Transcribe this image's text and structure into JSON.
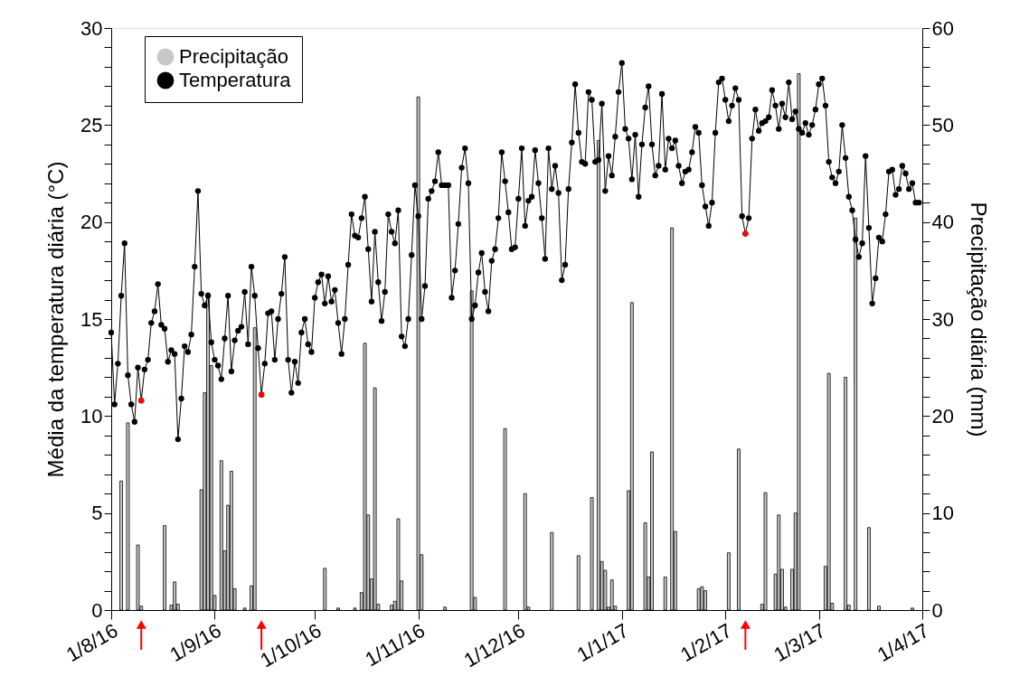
{
  "chart_data": {
    "type": "line",
    "xlabel": null,
    "ylabel": "Média da temperatura diária (°C)",
    "y2label": "Precipitação diária (mm)",
    "xlim": [
      "2016-08-01",
      "2017-04-01"
    ],
    "xticks": [
      {
        "value": "2016-08-01",
        "label": "1/8/16"
      },
      {
        "value": "2016-09-01",
        "label": "1/9/16"
      },
      {
        "value": "2016-10-01",
        "label": "1/10/16"
      },
      {
        "value": "2016-11-01",
        "label": "1/11/16"
      },
      {
        "value": "2016-12-01",
        "label": "1/12/16"
      },
      {
        "value": "2017-01-01",
        "label": "1/1/17"
      },
      {
        "value": "2017-02-01",
        "label": "1/2/17"
      },
      {
        "value": "2017-03-01",
        "label": "1/3/17"
      },
      {
        "value": "2017-04-01",
        "label": "1/4/17"
      }
    ],
    "ylim": [
      0,
      30
    ],
    "yticks": [
      0,
      {
        "value": 1,
        "label": null
      },
      {
        "value": 2,
        "label": null
      },
      {
        "value": 3,
        "label": null
      },
      {
        "value": 4,
        "label": null
      },
      5,
      {
        "value": 6,
        "label": null
      },
      {
        "value": 7,
        "label": null
      },
      {
        "value": 8,
        "label": null
      },
      {
        "value": 9,
        "label": null
      },
      10,
      {
        "value": 11,
        "label": null
      },
      {
        "value": 12,
        "label": null
      },
      {
        "value": 13,
        "label": null
      },
      {
        "value": 14,
        "label": null
      },
      15,
      {
        "value": 16,
        "label": null
      },
      {
        "value": 17,
        "label": null
      },
      {
        "value": 18,
        "label": null
      },
      {
        "value": 19,
        "label": null
      },
      20,
      {
        "value": 21,
        "label": null
      },
      {
        "value": 22,
        "label": null
      },
      {
        "value": 23,
        "label": null
      },
      {
        "value": 24,
        "label": null
      },
      25,
      {
        "value": 26,
        "label": null
      },
      {
        "value": 27,
        "label": null
      },
      {
        "value": 28,
        "label": null
      },
      {
        "value": 29,
        "label": null
      },
      30
    ],
    "y2lim": [
      0,
      60
    ],
    "y2ticks": [
      0,
      {
        "value": 2,
        "label": null
      },
      {
        "value": 4,
        "label": null
      },
      {
        "value": 6,
        "label": null
      },
      {
        "value": 8,
        "label": null
      },
      10,
      {
        "value": 12,
        "label": null
      },
      {
        "value": 14,
        "label": null
      },
      {
        "value": 16,
        "label": null
      },
      {
        "value": 18,
        "label": null
      },
      20,
      {
        "value": 22,
        "label": null
      },
      {
        "value": 24,
        "label": null
      },
      {
        "value": 26,
        "label": null
      },
      {
        "value": 28,
        "label": null
      },
      30,
      {
        "value": 32,
        "label": null
      },
      {
        "value": 34,
        "label": null
      },
      {
        "value": 36,
        "label": null
      },
      {
        "value": 38,
        "label": null
      },
      40,
      {
        "value": 42,
        "label": null
      },
      {
        "value": 44,
        "label": null
      },
      {
        "value": 46,
        "label": null
      },
      {
        "value": 48,
        "label": null
      },
      50,
      {
        "value": 52,
        "label": null
      },
      {
        "value": 54,
        "label": null
      },
      {
        "value": 56,
        "label": null
      },
      {
        "value": 58,
        "label": null
      },
      60
    ],
    "grid": false,
    "legend": "top left",
    "marker": "circle",
    "x": [
      "2016-08-01",
      "2016-08-02",
      "2016-08-03",
      "2016-08-04",
      "2016-08-05",
      "2016-08-06",
      "2016-08-07",
      "2016-08-08",
      "2016-08-09",
      "2016-08-10",
      "2016-08-11",
      "2016-08-12",
      "2016-08-13",
      "2016-08-14",
      "2016-08-15",
      "2016-08-16",
      "2016-08-17",
      "2016-08-18",
      "2016-08-19",
      "2016-08-20",
      "2016-08-21",
      "2016-08-22",
      "2016-08-23",
      "2016-08-24",
      "2016-08-25",
      "2016-08-26",
      "2016-08-27",
      "2016-08-28",
      "2016-08-29",
      "2016-08-30",
      "2016-08-31",
      "2016-09-01",
      "2016-09-02",
      "2016-09-03",
      "2016-09-04",
      "2016-09-05",
      "2016-09-06",
      "2016-09-07",
      "2016-09-08",
      "2016-09-09",
      "2016-09-10",
      "2016-09-11",
      "2016-09-12",
      "2016-09-13",
      "2016-09-14",
      "2016-09-15",
      "2016-09-16",
      "2016-09-17",
      "2016-09-18",
      "2016-09-19",
      "2016-09-20",
      "2016-09-21",
      "2016-09-22",
      "2016-09-23",
      "2016-09-24",
      "2016-09-25",
      "2016-09-26",
      "2016-09-27",
      "2016-09-28",
      "2016-09-29",
      "2016-09-30",
      "2016-10-01",
      "2016-10-02",
      "2016-10-03",
      "2016-10-04",
      "2016-10-05",
      "2016-10-06",
      "2016-10-07",
      "2016-10-08",
      "2016-10-09",
      "2016-10-10",
      "2016-10-11",
      "2016-10-12",
      "2016-10-13",
      "2016-10-14",
      "2016-10-15",
      "2016-10-16",
      "2016-10-17",
      "2016-10-18",
      "2016-10-19",
      "2016-10-20",
      "2016-10-21",
      "2016-10-22",
      "2016-10-23",
      "2016-10-24",
      "2016-10-25",
      "2016-10-26",
      "2016-10-27",
      "2016-10-28",
      "2016-10-29",
      "2016-10-30",
      "2016-10-31",
      "2016-11-01",
      "2016-11-02",
      "2016-11-03",
      "2016-11-04",
      "2016-11-05",
      "2016-11-06",
      "2016-11-07",
      "2016-11-08",
      "2016-11-09",
      "2016-11-10",
      "2016-11-11",
      "2016-11-12",
      "2016-11-13",
      "2016-11-14",
      "2016-11-15",
      "2016-11-16",
      "2016-11-17",
      "2016-11-18",
      "2016-11-19",
      "2016-11-20",
      "2016-11-21",
      "2016-11-22",
      "2016-11-23",
      "2016-11-24",
      "2016-11-25",
      "2016-11-26",
      "2016-11-27",
      "2016-11-28",
      "2016-11-29",
      "2016-11-30",
      "2016-12-01",
      "2016-12-02",
      "2016-12-03",
      "2016-12-04",
      "2016-12-05",
      "2016-12-06",
      "2016-12-07",
      "2016-12-08",
      "2016-12-09",
      "2016-12-10",
      "2016-12-11",
      "2016-12-12",
      "2016-12-13",
      "2016-12-14",
      "2016-12-15",
      "2016-12-16",
      "2016-12-17",
      "2016-12-18",
      "2016-12-19",
      "2016-12-20",
      "2016-12-21",
      "2016-12-22",
      "2016-12-23",
      "2016-12-24",
      "2016-12-25",
      "2016-12-26",
      "2016-12-27",
      "2016-12-28",
      "2016-12-29",
      "2016-12-30",
      "2016-12-31",
      "2017-01-01",
      "2017-01-02",
      "2017-01-03",
      "2017-01-04",
      "2017-01-05",
      "2017-01-06",
      "2017-01-07",
      "2017-01-08",
      "2017-01-09",
      "2017-01-10",
      "2017-01-11",
      "2017-01-12",
      "2017-01-13",
      "2017-01-14",
      "2017-01-15",
      "2017-01-16",
      "2017-01-17",
      "2017-01-18",
      "2017-01-19",
      "2017-01-20",
      "2017-01-21",
      "2017-01-22",
      "2017-01-23",
      "2017-01-24",
      "2017-01-25",
      "2017-01-26",
      "2017-01-27",
      "2017-01-28",
      "2017-01-29",
      "2017-01-30",
      "2017-01-31",
      "2017-02-01",
      "2017-02-02",
      "2017-02-03",
      "2017-02-04",
      "2017-02-05",
      "2017-02-06",
      "2017-02-07",
      "2017-02-08",
      "2017-02-09",
      "2017-02-10",
      "2017-02-11",
      "2017-02-12",
      "2017-02-13",
      "2017-02-14",
      "2017-02-15",
      "2017-02-16",
      "2017-02-17",
      "2017-02-18",
      "2017-02-19",
      "2017-02-20",
      "2017-02-21",
      "2017-02-22",
      "2017-02-23",
      "2017-02-24",
      "2017-02-25",
      "2017-02-26",
      "2017-02-27",
      "2017-02-28",
      "2017-03-01",
      "2017-03-02",
      "2017-03-03",
      "2017-03-04",
      "2017-03-05",
      "2017-03-06",
      "2017-03-07",
      "2017-03-08",
      "2017-03-09",
      "2017-03-10",
      "2017-03-11",
      "2017-03-12",
      "2017-03-13",
      "2017-03-14",
      "2017-03-15",
      "2017-03-16",
      "2017-03-17",
      "2017-03-18",
      "2017-03-19",
      "2017-03-20",
      "2017-03-21",
      "2017-03-22",
      "2017-03-23",
      "2017-03-24",
      "2017-03-25",
      "2017-03-26",
      "2017-03-27",
      "2017-03-28",
      "2017-03-29",
      "2017-03-30",
      "2017-03-31"
    ],
    "series": [
      {
        "name": "Precipitação",
        "type": "bar",
        "axis": "y2",
        "color": "#c8c8c8",
        "x": [
          "2016-08-04",
          "2016-08-06",
          "2016-08-09",
          "2016-08-10",
          "2016-08-17",
          "2016-08-19",
          "2016-08-20",
          "2016-08-21",
          "2016-08-28",
          "2016-08-29",
          "2016-08-30",
          "2016-08-31",
          "2016-09-01",
          "2016-09-03",
          "2016-09-04",
          "2016-09-05",
          "2016-09-06",
          "2016-09-07",
          "2016-09-10",
          "2016-09-12",
          "2016-09-13",
          "2016-10-04",
          "2016-10-08",
          "2016-10-13",
          "2016-10-15",
          "2016-10-16",
          "2016-10-17",
          "2016-10-18",
          "2016-10-19",
          "2016-10-20",
          "2016-10-24",
          "2016-10-25",
          "2016-10-26",
          "2016-10-27",
          "2016-11-01",
          "2016-11-02",
          "2016-11-09",
          "2016-11-17",
          "2016-11-18",
          "2016-11-27",
          "2016-12-03",
          "2016-12-04",
          "2016-12-11",
          "2016-12-19",
          "2016-12-23",
          "2016-12-25",
          "2016-12-26",
          "2016-12-27",
          "2016-12-28",
          "2016-12-29",
          "2016-12-30",
          "2017-01-03",
          "2017-01-04",
          "2017-01-08",
          "2017-01-09",
          "2017-01-10",
          "2017-01-14",
          "2017-01-16",
          "2017-01-17",
          "2017-01-24",
          "2017-01-25",
          "2017-01-26",
          "2017-02-02",
          "2017-02-05",
          "2017-02-12",
          "2017-02-13",
          "2017-02-16",
          "2017-02-17",
          "2017-02-18",
          "2017-02-19",
          "2017-02-21",
          "2017-02-22",
          "2017-02-23",
          "2017-03-03",
          "2017-03-04",
          "2017-03-05",
          "2017-03-09",
          "2017-03-10",
          "2017-03-12",
          "2017-03-16",
          "2017-03-19",
          "2017-03-29"
        ],
        "values": [
          13.3,
          19.3,
          6.7,
          0.4,
          8.7,
          0.5,
          2.9,
          0.6,
          12.4,
          22.4,
          32.7,
          25.2,
          1.5,
          15.4,
          6.1,
          10.8,
          14.3,
          2.2,
          0.2,
          2.5,
          29.1,
          4.3,
          0.2,
          0.2,
          1.8,
          27.5,
          9.8,
          3.2,
          22.9,
          0.6,
          0.5,
          0.9,
          9.4,
          3.0,
          52.9,
          5.7,
          0.3,
          32.9,
          1.3,
          18.7,
          12.0,
          0.3,
          8.0,
          5.6,
          11.6,
          48.4,
          5.0,
          4.1,
          0.3,
          3.1,
          0.4,
          12.3,
          31.7,
          9.0,
          3.4,
          16.3,
          3.4,
          39.4,
          8.1,
          2.2,
          2.4,
          2.0,
          5.9,
          16.6,
          0.6,
          12.1,
          3.7,
          9.8,
          4.2,
          0.3,
          4.2,
          10.0,
          55.3,
          4.5,
          24.4,
          0.7,
          24.0,
          0.5,
          40.4,
          8.5,
          0.4,
          0.2
        ]
      },
      {
        "name": "Temperatura",
        "color": "#000000",
        "values": [
          14.3,
          10.6,
          12.7,
          16.2,
          18.9,
          12.1,
          10.6,
          9.7,
          12.5,
          10.8,
          12.4,
          12.9,
          14.8,
          15.4,
          16.8,
          14.7,
          14.5,
          12.8,
          13.4,
          13.2,
          8.8,
          10.9,
          13.6,
          13.3,
          14.2,
          17.7,
          21.6,
          16.3,
          15.7,
          16.2,
          13.8,
          12.9,
          12.6,
          11.9,
          14.0,
          16.2,
          12.3,
          13.9,
          14.4,
          14.6,
          16.4,
          13.7,
          17.7,
          16.2,
          13.5,
          11.1,
          12.7,
          15.3,
          15.4,
          12.9,
          15.0,
          16.3,
          18.2,
          12.9,
          11.2,
          12.8,
          11.7,
          14.3,
          15.0,
          13.7,
          13.3,
          16.1,
          16.9,
          17.3,
          15.8,
          17.2,
          15.9,
          16.5,
          14.8,
          13.2,
          15.0,
          17.8,
          20.4,
          19.3,
          19.2,
          20.2,
          21.3,
          18.6,
          15.9,
          19.5,
          16.9,
          14.9,
          16.4,
          20.4,
          19.5,
          18.9,
          20.6,
          14.1,
          13.6,
          15.0,
          18.3,
          21.9,
          20.3,
          15.0,
          16.7,
          21.2,
          21.6,
          22.1,
          23.6,
          21.9,
          21.9,
          21.9,
          16.1,
          17.5,
          19.9,
          22.8,
          23.8,
          22.0,
          15.0,
          15.7,
          17.4,
          18.4,
          16.4,
          15.4,
          18.0,
          18.6,
          20.2,
          23.6,
          22.1,
          20.5,
          18.6,
          18.7,
          21.2,
          23.8,
          19.8,
          21.1,
          21.3,
          23.7,
          22.0,
          20.2,
          18.1,
          23.8,
          21.7,
          22.9,
          21.5,
          17.0,
          17.8,
          21.7,
          24.1,
          27.1,
          24.6,
          23.1,
          23.0,
          26.7,
          26.3,
          23.1,
          23.2,
          26.1,
          21.6,
          23.4,
          22.4,
          24.4,
          26.7,
          28.2,
          24.8,
          24.3,
          22.2,
          24.5,
          21.3,
          24.0,
          25.9,
          27.0,
          24.0,
          22.4,
          22.9,
          26.6,
          22.7,
          24.3,
          23.8,
          24.2,
          22.9,
          22.0,
          22.6,
          22.7,
          23.6,
          24.9,
          24.6,
          21.9,
          20.8,
          19.8,
          21.0,
          24.6,
          27.2,
          27.4,
          26.3,
          25.2,
          26.0,
          26.9,
          26.3,
          20.3,
          19.4,
          20.2,
          24.3,
          25.8,
          24.7,
          25.1,
          25.2,
          25.4,
          26.8,
          26.0,
          24.8,
          26.1,
          25.4,
          27.2,
          25.3,
          25.7,
          24.8,
          24.6,
          25.1,
          24.5,
          25.0,
          25.8,
          27.1,
          27.4,
          26.0,
          23.1,
          22.3,
          22.0,
          22.6,
          25.0,
          23.3,
          21.3,
          20.6,
          19.1,
          18.2,
          18.9,
          23.4,
          19.7,
          15.8,
          17.1,
          19.2,
          19.0,
          20.4,
          22.6,
          22.7,
          21.4,
          21.7,
          22.9,
          22.5,
          21.7,
          22.0,
          21.0,
          21.0
        ]
      },
      {
        "type": "scatter",
        "color": "#ff0000",
        "x": [
          "2016-08-10",
          "2016-09-15",
          "2017-02-07"
        ],
        "values": [
          10.8,
          11.1,
          19.4
        ]
      }
    ]
  }
}
